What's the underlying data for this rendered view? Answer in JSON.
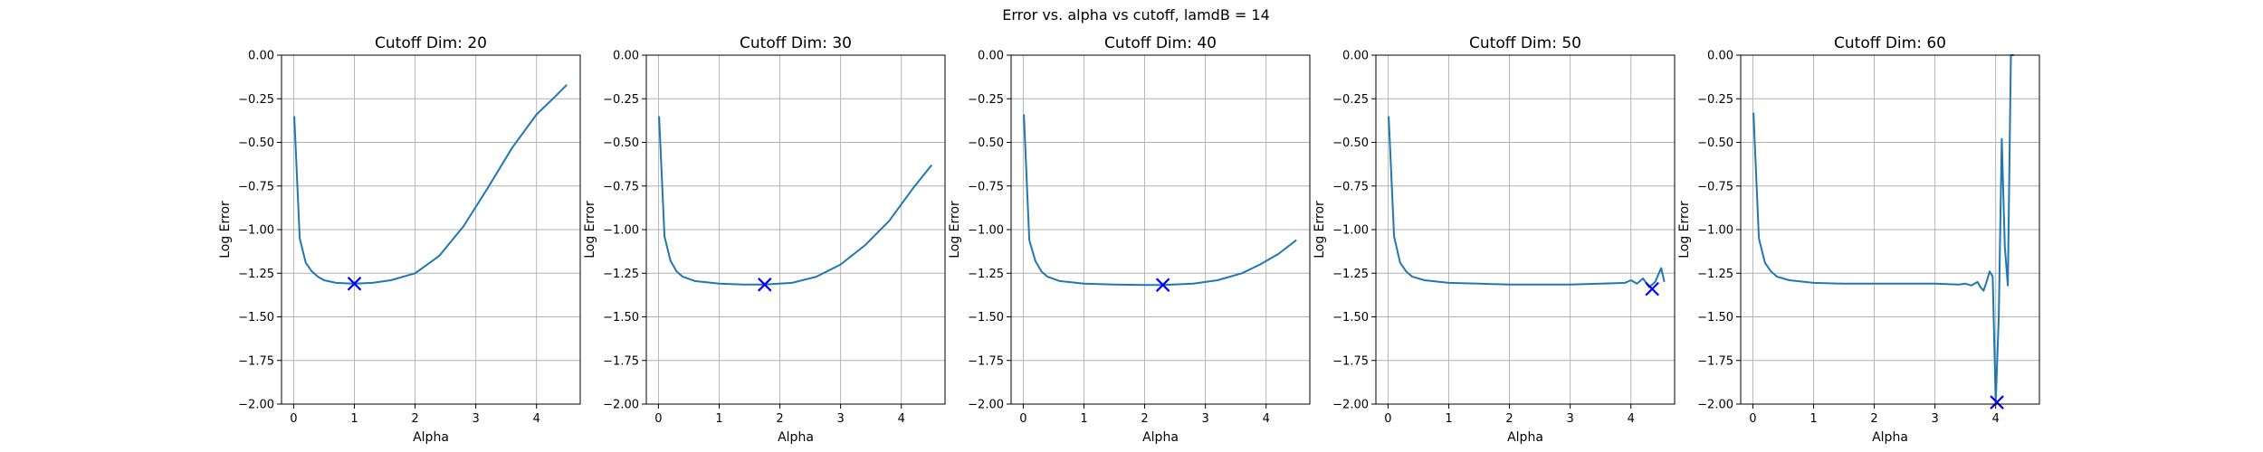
{
  "figure": {
    "suptitle": "Error vs. alpha vs cutoff, lamdB = 14"
  },
  "chart_data": [
    {
      "type": "line",
      "title": "Cutoff Dim: 20",
      "xlabel": "Alpha",
      "ylabel": "Log Error",
      "xlim": [
        -0.2,
        4.72
      ],
      "ylim": [
        -2.0,
        0.0
      ],
      "xticks": [
        0,
        1,
        2,
        3,
        4
      ],
      "yticks": [
        -2.0,
        -1.75,
        -1.5,
        -1.25,
        -1.0,
        -0.75,
        -0.5,
        -0.25,
        0.0
      ],
      "grid": true,
      "series": [
        {
          "color": "#1f77b4",
          "x": [
            0.01,
            0.1,
            0.2,
            0.3,
            0.4,
            0.5,
            0.7,
            1.0,
            1.3,
            1.6,
            2.0,
            2.4,
            2.8,
            3.2,
            3.6,
            4.0,
            4.3,
            4.5
          ],
          "y": [
            -0.35,
            -1.05,
            -1.19,
            -1.24,
            -1.27,
            -1.29,
            -1.305,
            -1.31,
            -1.305,
            -1.29,
            -1.25,
            -1.15,
            -0.98,
            -0.76,
            -0.53,
            -0.34,
            -0.24,
            -0.17
          ]
        }
      ],
      "marker": {
        "x": 1.0,
        "y": -1.31,
        "symbol": "x",
        "color": "#0000ff"
      }
    },
    {
      "type": "line",
      "title": "Cutoff Dim: 30",
      "xlabel": "Alpha",
      "ylabel": "Log Error",
      "xlim": [
        -0.2,
        4.72
      ],
      "ylim": [
        -2.0,
        0.0
      ],
      "xticks": [
        0,
        1,
        2,
        3,
        4
      ],
      "yticks": [
        -2.0,
        -1.75,
        -1.5,
        -1.25,
        -1.0,
        -0.75,
        -0.5,
        -0.25,
        0.0
      ],
      "grid": true,
      "series": [
        {
          "color": "#1f77b4",
          "x": [
            0.01,
            0.1,
            0.2,
            0.3,
            0.4,
            0.6,
            1.0,
            1.4,
            1.75,
            2.2,
            2.6,
            3.0,
            3.4,
            3.8,
            4.2,
            4.5
          ],
          "y": [
            -0.35,
            -1.04,
            -1.18,
            -1.24,
            -1.27,
            -1.295,
            -1.31,
            -1.315,
            -1.315,
            -1.305,
            -1.27,
            -1.2,
            -1.09,
            -0.95,
            -0.76,
            -0.63
          ]
        }
      ],
      "marker": {
        "x": 1.75,
        "y": -1.315,
        "symbol": "x",
        "color": "#0000ff"
      }
    },
    {
      "type": "line",
      "title": "Cutoff Dim: 40",
      "xlabel": "Alpha",
      "ylabel": "Log Error",
      "xlim": [
        -0.2,
        4.72
      ],
      "ylim": [
        -2.0,
        0.0
      ],
      "xticks": [
        0,
        1,
        2,
        3,
        4
      ],
      "yticks": [
        -2.0,
        -1.75,
        -1.5,
        -1.25,
        -1.0,
        -0.75,
        -0.5,
        -0.25,
        0.0
      ],
      "grid": true,
      "series": [
        {
          "color": "#1f77b4",
          "x": [
            0.01,
            0.1,
            0.2,
            0.3,
            0.4,
            0.6,
            1.0,
            1.5,
            2.0,
            2.3,
            2.8,
            3.2,
            3.6,
            3.9,
            4.2,
            4.5
          ],
          "y": [
            -0.34,
            -1.06,
            -1.18,
            -1.24,
            -1.27,
            -1.295,
            -1.31,
            -1.315,
            -1.317,
            -1.317,
            -1.31,
            -1.29,
            -1.25,
            -1.2,
            -1.14,
            -1.06
          ]
        }
      ],
      "marker": {
        "x": 2.3,
        "y": -1.317,
        "symbol": "x",
        "color": "#0000ff"
      }
    },
    {
      "type": "line",
      "title": "Cutoff Dim: 50",
      "xlabel": "Alpha",
      "ylabel": "Log Error",
      "xlim": [
        -0.2,
        4.72
      ],
      "ylim": [
        -2.0,
        0.0
      ],
      "xticks": [
        0,
        1,
        2,
        3,
        4
      ],
      "yticks": [
        -2.0,
        -1.75,
        -1.5,
        -1.25,
        -1.0,
        -0.75,
        -0.5,
        -0.25,
        0.0
      ],
      "grid": true,
      "series": [
        {
          "color": "#1f77b4",
          "x": [
            0.01,
            0.1,
            0.2,
            0.3,
            0.4,
            0.6,
            1.0,
            1.5,
            2.0,
            2.5,
            3.0,
            3.5,
            3.9,
            4.0,
            4.1,
            4.2,
            4.3,
            4.4,
            4.5,
            4.55
          ],
          "y": [
            -0.35,
            -1.04,
            -1.19,
            -1.24,
            -1.27,
            -1.29,
            -1.305,
            -1.31,
            -1.315,
            -1.315,
            -1.315,
            -1.31,
            -1.305,
            -1.29,
            -1.31,
            -1.28,
            -1.33,
            -1.3,
            -1.22,
            -1.3
          ]
        }
      ],
      "marker": {
        "x": 4.35,
        "y": -1.34,
        "symbol": "x",
        "color": "#0000ff"
      }
    },
    {
      "type": "line",
      "title": "Cutoff Dim: 60",
      "xlabel": "Alpha",
      "ylabel": "Log Error",
      "xlim": [
        -0.2,
        4.72
      ],
      "ylim": [
        -2.0,
        0.0
      ],
      "xticks": [
        0,
        1,
        2,
        3,
        4
      ],
      "yticks": [
        -2.0,
        -1.75,
        -1.5,
        -1.25,
        -1.0,
        -0.75,
        -0.5,
        -0.25,
        0.0
      ],
      "grid": true,
      "series": [
        {
          "color": "#1f77b4",
          "x": [
            0.01,
            0.1,
            0.2,
            0.3,
            0.4,
            0.6,
            1.0,
            1.5,
            2.0,
            2.5,
            3.0,
            3.4,
            3.5,
            3.6,
            3.7,
            3.75,
            3.8,
            3.85,
            3.9,
            3.95,
            4.0,
            4.05,
            4.1,
            4.15,
            4.2,
            4.25,
            4.3
          ],
          "y": [
            -0.33,
            -1.05,
            -1.19,
            -1.24,
            -1.27,
            -1.29,
            -1.305,
            -1.31,
            -1.31,
            -1.31,
            -1.31,
            -1.315,
            -1.31,
            -1.32,
            -1.3,
            -1.33,
            -1.35,
            -1.3,
            -1.24,
            -1.27,
            -1.99,
            -1.5,
            -0.48,
            -1.1,
            -1.32,
            0.0,
            0.0
          ]
        }
      ],
      "marker": {
        "x": 4.02,
        "y": -1.99,
        "symbol": "x",
        "color": "#0000ff"
      }
    }
  ]
}
